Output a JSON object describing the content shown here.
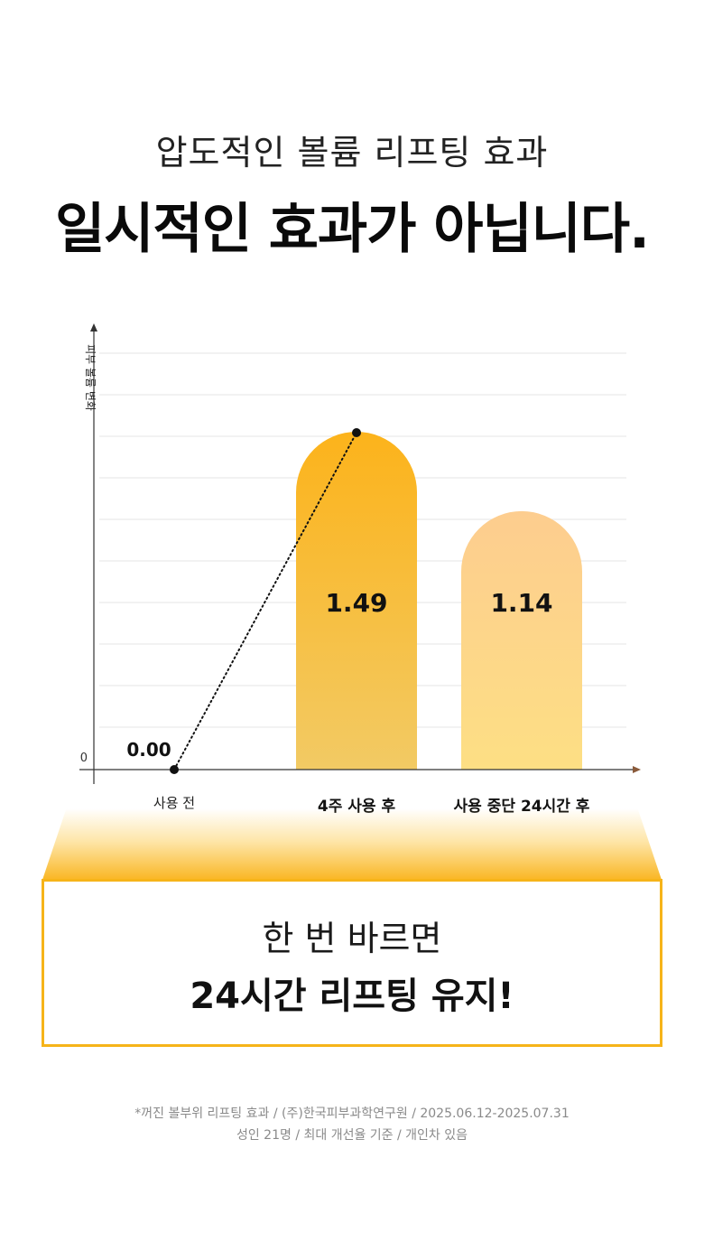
{
  "header": {
    "subtitle": "압도적인 볼륨 리프팅 효과",
    "title": "일시적인 효과가 아닙니다."
  },
  "chart_data": {
    "type": "bar",
    "ylabel": "피부 볼륨 변화",
    "y_zero_label": "0",
    "categories": [
      "사용 전",
      "4주 사용 후",
      "사용 중단 24시간 후"
    ],
    "values": [
      0.0,
      1.49,
      1.14
    ],
    "value_labels": [
      "0.00",
      "1.49",
      "1.14"
    ],
    "bars_drawn": [
      false,
      true,
      true
    ],
    "bold_categories": [
      false,
      true,
      true
    ],
    "connector": "dotted line from 사용 전 point to top of 4주 사용 후 bar",
    "grid": true,
    "colors": {
      "bar1_top": "#fcb31b",
      "bar1_bottom": "#f2ca64",
      "bar2_top": "#fdcd8f",
      "bar2_bottom": "#fddf84",
      "axis": "#333333",
      "axis_arrow": "#8a5a3a",
      "grid": "#e6e6e6"
    }
  },
  "callout": {
    "line1": "한 번 바르면",
    "line2": "24시간 리프팅 유지!",
    "border_color": "#f6b419"
  },
  "footnote": {
    "line1": "*꺼진 볼부위 리프팅 효과 / (주)한국피부과학연구원 / 2025.06.12-2025.07.31",
    "line2": "성인 21명 / 최대 개선율 기준 / 개인차 있음"
  }
}
